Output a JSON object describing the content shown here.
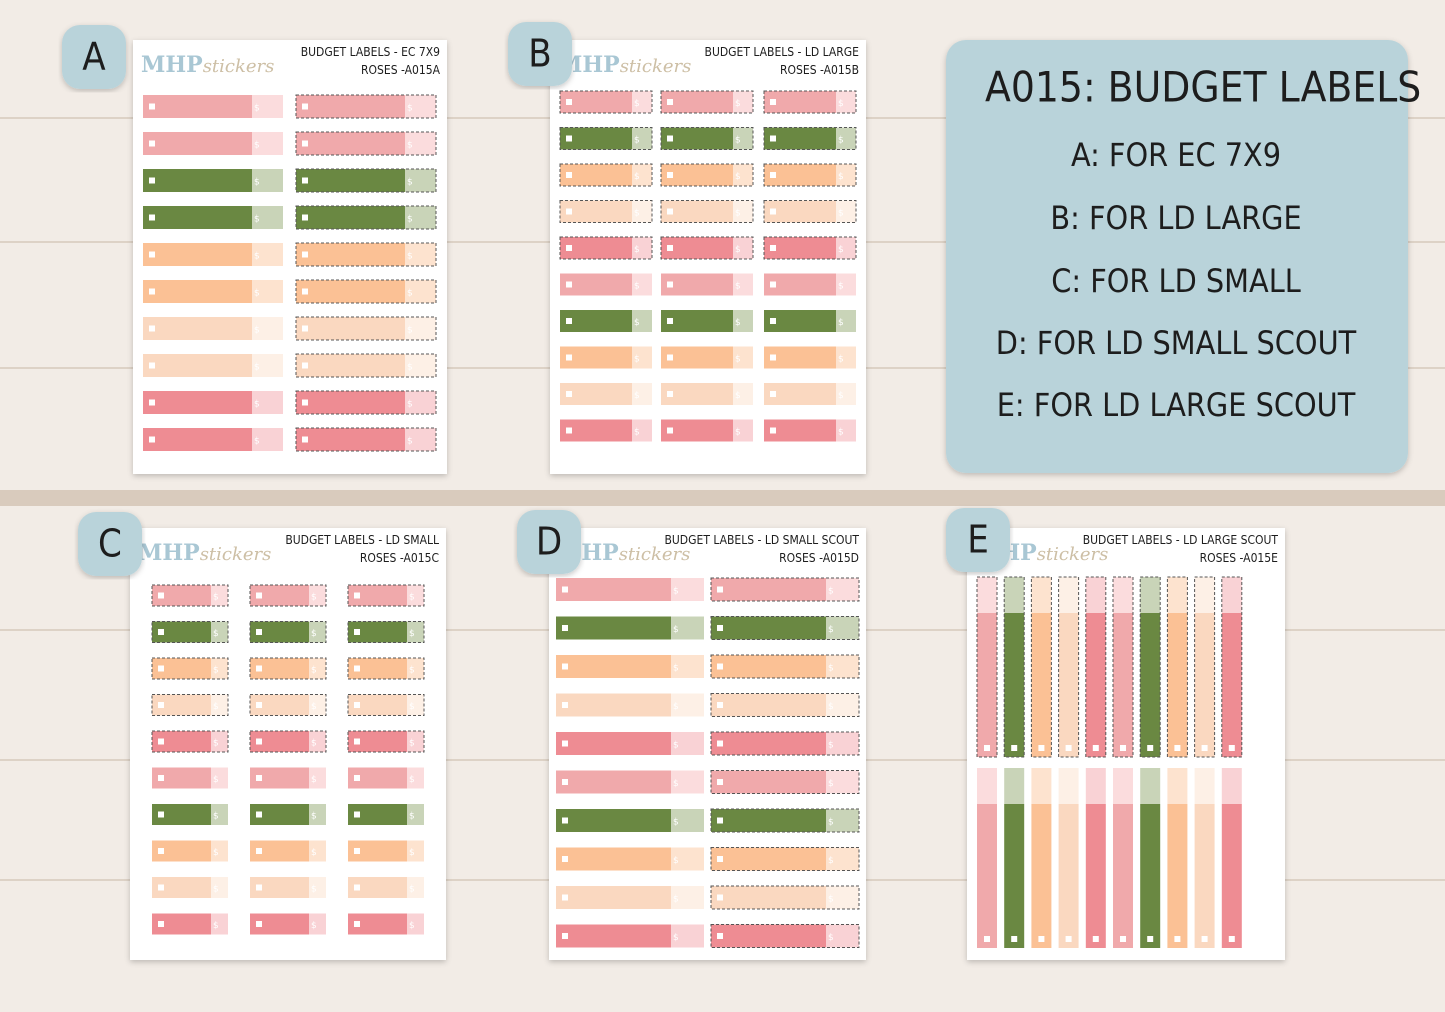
{
  "sheets": [
    {
      "letter": "A",
      "brand": "MHP",
      "brand_tail": "stickers",
      "title": "BUDGET LABELS - EC 7X9",
      "code": "ROSES -A015A"
    },
    {
      "letter": "B",
      "brand": "MHP",
      "brand_tail": "stickers",
      "title": "BUDGET LABELS - LD LARGE",
      "code": "ROSES -A015B"
    },
    {
      "letter": "C",
      "brand": "MHP",
      "brand_tail": "stickers",
      "title": "BUDGET LABELS - LD SMALL",
      "code": "ROSES -A015C"
    },
    {
      "letter": "D",
      "brand": "MHP",
      "brand_tail": "stickers",
      "title": "BUDGET LABELS - LD SMALL SCOUT",
      "code": "ROSES -A015D"
    },
    {
      "letter": "E",
      "brand": "MHP",
      "brand_tail": "stickers",
      "title": "BUDGET LABELS - LD LARGE SCOUT",
      "code": "ROSES -A015E"
    }
  ],
  "symbol": "$",
  "info": {
    "title": "A015: BUDGET LABELS",
    "lines": [
      "A: FOR EC 7X9",
      "B: FOR LD LARGE",
      "C: FOR LD SMALL",
      "D: FOR LD SMALL SCOUT",
      "E: FOR LD LARGE SCOUT"
    ]
  }
}
